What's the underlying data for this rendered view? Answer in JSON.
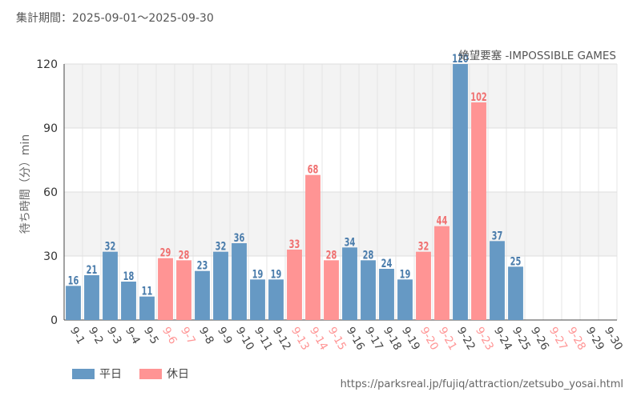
{
  "period_label": "集計期間：2025-09-01～2025-09-30",
  "source_url": "https://parksreal.jp/fujiq/attraction/zetsubo_yosai.html",
  "legend": [
    {
      "label": "平日",
      "color": "#6699c4"
    },
    {
      "label": "休日",
      "color": "#ff9494"
    }
  ],
  "chart_data": {
    "type": "bar",
    "title": "絶望要塞 -IMPOSSIBLE GAMES",
    "ylabel": "待ち時間（分）min",
    "xlabel": "",
    "ylim": [
      0,
      120
    ],
    "yticks": [
      0,
      30,
      60,
      90,
      120
    ],
    "grid": true,
    "legend_position": "bottom-left",
    "colors": {
      "weekday": "#6699c4",
      "holiday": "#ff9494",
      "weekday_label": "#4a7cab",
      "holiday_label": "#f07070"
    },
    "categories": [
      "9-1",
      "9-2",
      "9-3",
      "9-4",
      "9-5",
      "9-6",
      "9-7",
      "9-8",
      "9-9",
      "9-10",
      "9-11",
      "9-12",
      "9-13",
      "9-14",
      "9-15",
      "9-16",
      "9-17",
      "9-18",
      "9-19",
      "9-20",
      "9-21",
      "9-22",
      "9-23",
      "9-24",
      "9-25",
      "9-26",
      "9-27",
      "9-28",
      "9-29",
      "9-30"
    ],
    "values": [
      16,
      21,
      32,
      18,
      11,
      29,
      28,
      23,
      32,
      36,
      19,
      19,
      33,
      68,
      28,
      34,
      28,
      24,
      19,
      32,
      44,
      120,
      102,
      37,
      25,
      null,
      null,
      null,
      null,
      null
    ],
    "day_type": [
      "weekday",
      "weekday",
      "weekday",
      "weekday",
      "weekday",
      "holiday",
      "holiday",
      "weekday",
      "weekday",
      "weekday",
      "weekday",
      "weekday",
      "holiday",
      "holiday",
      "holiday",
      "weekday",
      "weekday",
      "weekday",
      "weekday",
      "holiday",
      "holiday",
      "weekday",
      "holiday",
      "weekday",
      "weekday",
      "weekday",
      "holiday",
      "holiday",
      "weekday",
      "weekday"
    ]
  }
}
